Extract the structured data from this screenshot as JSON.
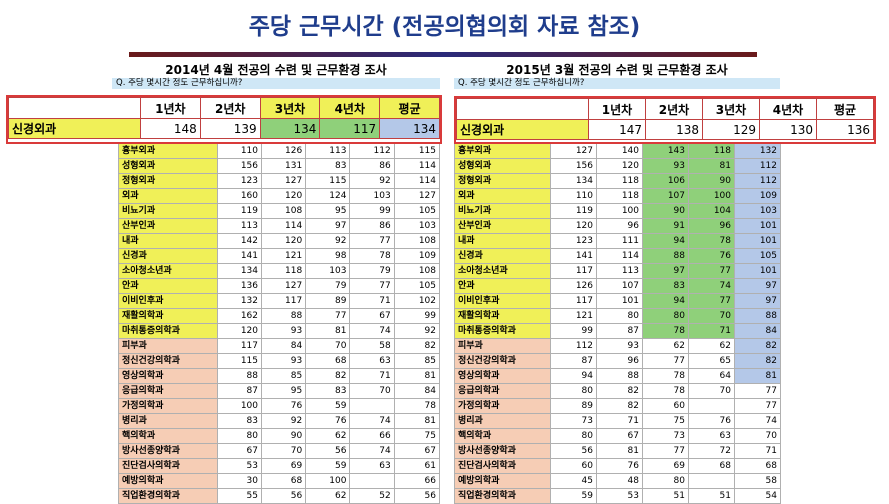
{
  "title": "주당 근무시간 (전공의협의회 자료 참조)",
  "colors": {
    "title": "#1f3d8c",
    "highlight_border": "#d93a3a",
    "yellow": "#f0f058",
    "green": "#8fd07a",
    "blue": "#b4c8e8",
    "peach": "#f6cdb5"
  },
  "left": {
    "title": "2014년 4월 전공의 수련 및 근무환경 조사",
    "question": "Q. 주당 몇시간 정도 근무하십니까?",
    "headers": [
      "1년차",
      "2년차",
      "3년차",
      "4년차",
      "평균"
    ],
    "highlight": {
      "name": "신경외과",
      "values": [
        "148",
        "139",
        "134",
        "117",
        "134"
      ]
    },
    "rows": [
      {
        "name": "흉부외과",
        "values": [
          "110",
          "126",
          "113",
          "112",
          "115"
        ]
      },
      {
        "name": "성형외과",
        "values": [
          "156",
          "131",
          "83",
          "86",
          "114"
        ]
      },
      {
        "name": "정형외과",
        "values": [
          "123",
          "127",
          "115",
          "92",
          "114"
        ]
      },
      {
        "name": "외과",
        "values": [
          "160",
          "120",
          "124",
          "103",
          "127"
        ]
      },
      {
        "name": "비뇨기과",
        "values": [
          "119",
          "108",
          "95",
          "99",
          "105"
        ]
      },
      {
        "name": "산부인과",
        "values": [
          "113",
          "114",
          "97",
          "86",
          "103"
        ]
      },
      {
        "name": "내과",
        "values": [
          "142",
          "120",
          "92",
          "77",
          "108"
        ]
      },
      {
        "name": "신경과",
        "values": [
          "141",
          "121",
          "98",
          "78",
          "109"
        ]
      },
      {
        "name": "소아청소년과",
        "values": [
          "134",
          "118",
          "103",
          "79",
          "108"
        ]
      },
      {
        "name": "안과",
        "values": [
          "136",
          "127",
          "79",
          "77",
          "105"
        ]
      },
      {
        "name": "이비인후과",
        "values": [
          "132",
          "117",
          "89",
          "71",
          "102"
        ]
      },
      {
        "name": "재활의학과",
        "values": [
          "162",
          "88",
          "77",
          "67",
          "99"
        ]
      },
      {
        "name": "마취통증의학과",
        "values": [
          "120",
          "93",
          "81",
          "74",
          "92"
        ]
      },
      {
        "name": "피부과",
        "values": [
          "117",
          "84",
          "70",
          "58",
          "82"
        ]
      },
      {
        "name": "정신건강의학과",
        "values": [
          "115",
          "93",
          "68",
          "63",
          "85"
        ]
      },
      {
        "name": "영상의학과",
        "values": [
          "88",
          "85",
          "82",
          "71",
          "81"
        ]
      },
      {
        "name": "응급의학과",
        "values": [
          "87",
          "95",
          "83",
          "70",
          "84"
        ]
      },
      {
        "name": "가정의학과",
        "values": [
          "100",
          "76",
          "59",
          "",
          "78"
        ]
      },
      {
        "name": "병리과",
        "values": [
          "83",
          "92",
          "76",
          "74",
          "81"
        ]
      },
      {
        "name": "핵의학과",
        "values": [
          "80",
          "90",
          "62",
          "66",
          "75"
        ]
      },
      {
        "name": "방사선종양학과",
        "values": [
          "67",
          "70",
          "56",
          "74",
          "67"
        ]
      },
      {
        "name": "진단검사의학과",
        "values": [
          "53",
          "69",
          "59",
          "63",
          "61"
        ]
      },
      {
        "name": "예방의학과",
        "values": [
          "30",
          "68",
          "100",
          "",
          "66"
        ]
      },
      {
        "name": "직업환경의학과",
        "values": [
          "55",
          "56",
          "62",
          "52",
          "56"
        ]
      }
    ]
  },
  "right": {
    "title": "2015년 3월 전공의 수련 및 근무환경 조사",
    "question": "Q. 주당 몇시간 정도 근무하십니까?",
    "headers": [
      "1년차",
      "2년차",
      "3년차",
      "4년차",
      "평균"
    ],
    "highlight": {
      "name": "신경외과",
      "values": [
        "147",
        "138",
        "129",
        "130",
        "136"
      ]
    },
    "rows": [
      {
        "name": "흉부외과",
        "values": [
          "127",
          "140",
          "143",
          "118",
          "132"
        ]
      },
      {
        "name": "성형외과",
        "values": [
          "156",
          "120",
          "93",
          "81",
          "112"
        ]
      },
      {
        "name": "정형외과",
        "values": [
          "134",
          "118",
          "106",
          "90",
          "112"
        ]
      },
      {
        "name": "외과",
        "values": [
          "110",
          "118",
          "107",
          "100",
          "109"
        ]
      },
      {
        "name": "비뇨기과",
        "values": [
          "119",
          "100",
          "90",
          "104",
          "103"
        ]
      },
      {
        "name": "산부인과",
        "values": [
          "120",
          "96",
          "91",
          "96",
          "101"
        ]
      },
      {
        "name": "내과",
        "values": [
          "123",
          "111",
          "94",
          "78",
          "101"
        ]
      },
      {
        "name": "신경과",
        "values": [
          "141",
          "114",
          "88",
          "76",
          "105"
        ]
      },
      {
        "name": "소아청소년과",
        "values": [
          "117",
          "113",
          "97",
          "77",
          "101"
        ]
      },
      {
        "name": "안과",
        "values": [
          "126",
          "107",
          "83",
          "74",
          "97"
        ]
      },
      {
        "name": "이비인후과",
        "values": [
          "117",
          "101",
          "94",
          "77",
          "97"
        ]
      },
      {
        "name": "재활의학과",
        "values": [
          "121",
          "80",
          "80",
          "70",
          "88"
        ]
      },
      {
        "name": "마취통증의학과",
        "values": [
          "99",
          "87",
          "78",
          "71",
          "84"
        ]
      },
      {
        "name": "피부과",
        "values": [
          "112",
          "93",
          "62",
          "62",
          "82"
        ]
      },
      {
        "name": "정신건강의학과",
        "values": [
          "87",
          "96",
          "77",
          "65",
          "82"
        ]
      },
      {
        "name": "영상의학과",
        "values": [
          "94",
          "88",
          "78",
          "64",
          "81"
        ]
      },
      {
        "name": "응급의학과",
        "values": [
          "80",
          "82",
          "78",
          "70",
          "77"
        ]
      },
      {
        "name": "가정의학과",
        "values": [
          "89",
          "82",
          "60",
          "",
          "77"
        ]
      },
      {
        "name": "병리과",
        "values": [
          "73",
          "71",
          "75",
          "76",
          "74"
        ]
      },
      {
        "name": "핵의학과",
        "values": [
          "80",
          "67",
          "73",
          "63",
          "70"
        ]
      },
      {
        "name": "방사선종양학과",
        "values": [
          "56",
          "81",
          "77",
          "72",
          "71"
        ]
      },
      {
        "name": "진단검사의학과",
        "values": [
          "60",
          "76",
          "69",
          "68",
          "68"
        ]
      },
      {
        "name": "예방의학과",
        "values": [
          "45",
          "48",
          "80",
          "",
          "58"
        ]
      },
      {
        "name": "직업환경의학과",
        "values": [
          "59",
          "53",
          "51",
          "51",
          "54"
        ]
      }
    ]
  }
}
